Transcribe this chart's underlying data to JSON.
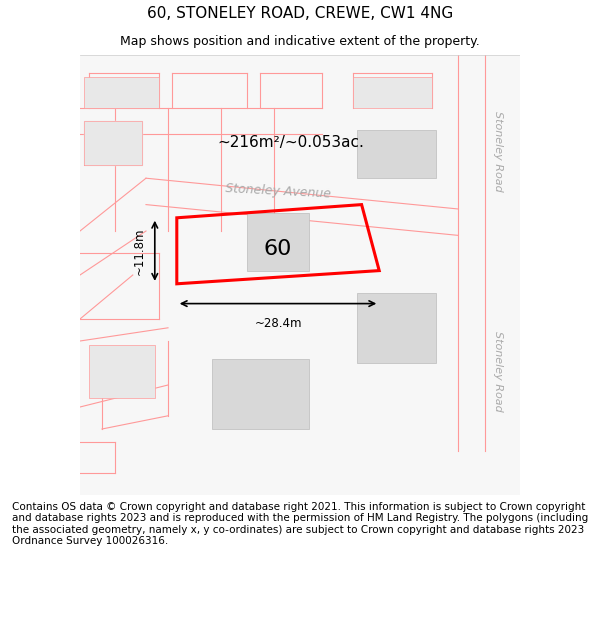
{
  "title_line1": "60, STONELEY ROAD, CREWE, CW1 4NG",
  "title_line2": "Map shows position and indicative extent of the property.",
  "footer_text": "Contains OS data © Crown copyright and database right 2021. This information is subject to Crown copyright and database rights 2023 and is reproduced with the permission of HM Land Registry. The polygons (including the associated geometry, namely x, y co-ordinates) are subject to Crown copyright and database rights 2023 Ordnance Survey 100026316.",
  "area_text": "~216m²/~0.053ac.",
  "property_number": "60",
  "dim_width": "~28.4m",
  "dim_height": "~11.8m",
  "road_label_top": "Stoneley Road",
  "road_label_bottom": "Stoneley Road",
  "avenue_label": "Stoneley Avenue",
  "map_bg": "#f5f5f5",
  "road_color": "#f5f5f5",
  "plot_outline_color": "#ff0000",
  "plot_fill_color": "#ffffff",
  "building_fill": "#e0e0e0",
  "road_line_color": "#ff9999",
  "title_fontsize": 11,
  "subtitle_fontsize": 9,
  "footer_fontsize": 7.5
}
